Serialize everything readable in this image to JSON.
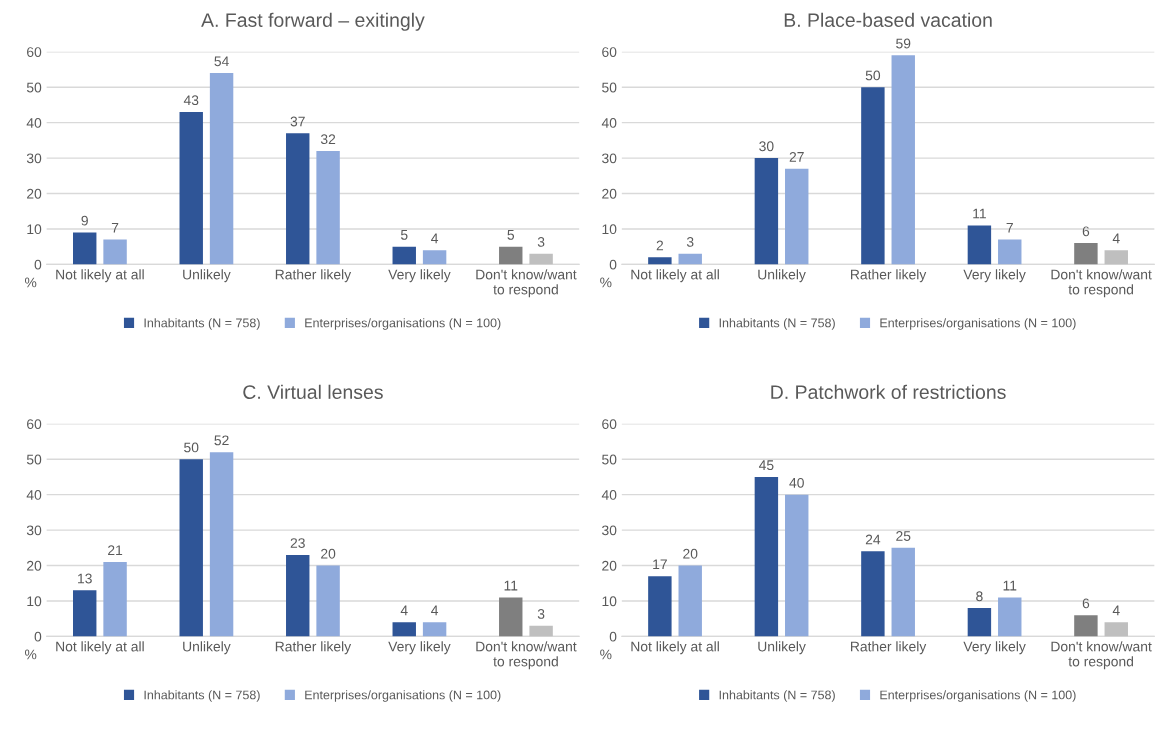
{
  "chart_data": [
    {
      "type": "bar",
      "title": "A. Fast forward – exitingly",
      "ylabel": "%",
      "categories": [
        "Not likely at all",
        "Unlikely",
        "Rather likely",
        "Very likely",
        "Don't know/want\nto respond"
      ],
      "ylim": [
        0,
        60
      ],
      "yticks": [
        0,
        10,
        20,
        30,
        40,
        50,
        60
      ],
      "grid": "y",
      "legend": "bottom",
      "data_labels": true,
      "series": [
        {
          "name": "Inhabitants (N = 758)",
          "color": "#2f5597",
          "colors": [
            "#2f5597",
            "#2f5597",
            "#2f5597",
            "#2f5597",
            "#7f7f7f"
          ],
          "values": [
            9,
            43,
            37,
            5,
            5
          ]
        },
        {
          "name": "Enterprises/organisations (N = 100)",
          "color": "#8faadc",
          "colors": [
            "#8faadc",
            "#8faadc",
            "#8faadc",
            "#8faadc",
            "#bfbfbf"
          ],
          "values": [
            7,
            54,
            32,
            4,
            3
          ]
        }
      ]
    },
    {
      "type": "bar",
      "title": "B. Place-based vacation",
      "ylabel": "%",
      "categories": [
        "Not likely at all",
        "Unlikely",
        "Rather likely",
        "Very likely",
        "Don't know/want\nto respond"
      ],
      "ylim": [
        0,
        60
      ],
      "yticks": [
        0,
        10,
        20,
        30,
        40,
        50,
        60
      ],
      "grid": "y",
      "legend": "bottom",
      "data_labels": true,
      "series": [
        {
          "name": "Inhabitants (N = 758)",
          "color": "#2f5597",
          "colors": [
            "#2f5597",
            "#2f5597",
            "#2f5597",
            "#2f5597",
            "#7f7f7f"
          ],
          "values": [
            2,
            30,
            50,
            11,
            6
          ]
        },
        {
          "name": "Enterprises/organisations (N = 100)",
          "color": "#8faadc",
          "colors": [
            "#8faadc",
            "#8faadc",
            "#8faadc",
            "#8faadc",
            "#bfbfbf"
          ],
          "values": [
            3,
            27,
            59,
            7,
            4
          ]
        }
      ]
    },
    {
      "type": "bar",
      "title": "C. Virtual lenses",
      "ylabel": "%",
      "categories": [
        "Not likely at all",
        "Unlikely",
        "Rather likely",
        "Very likely",
        "Don't know/want\nto respond"
      ],
      "ylim": [
        0,
        60
      ],
      "yticks": [
        0,
        10,
        20,
        30,
        40,
        50,
        60
      ],
      "grid": "y",
      "legend": "bottom",
      "data_labels": true,
      "series": [
        {
          "name": "Inhabitants (N = 758)",
          "color": "#2f5597",
          "colors": [
            "#2f5597",
            "#2f5597",
            "#2f5597",
            "#2f5597",
            "#7f7f7f"
          ],
          "values": [
            13,
            50,
            23,
            4,
            11
          ]
        },
        {
          "name": "Enterprises/organisations (N = 100)",
          "color": "#8faadc",
          "colors": [
            "#8faadc",
            "#8faadc",
            "#8faadc",
            "#8faadc",
            "#bfbfbf"
          ],
          "values": [
            21,
            52,
            20,
            4,
            3
          ]
        }
      ]
    },
    {
      "type": "bar",
      "title": "D. Patchwork of restrictions",
      "ylabel": "%",
      "categories": [
        "Not likely at all",
        "Unlikely",
        "Rather likely",
        "Very likely",
        "Don't know/want\nto respond"
      ],
      "ylim": [
        0,
        60
      ],
      "yticks": [
        0,
        10,
        20,
        30,
        40,
        50,
        60
      ],
      "grid": "y",
      "legend": "bottom",
      "data_labels": true,
      "series": [
        {
          "name": "Inhabitants (N = 758)",
          "color": "#2f5597",
          "colors": [
            "#2f5597",
            "#2f5597",
            "#2f5597",
            "#2f5597",
            "#7f7f7f"
          ],
          "values": [
            17,
            45,
            24,
            8,
            6
          ]
        },
        {
          "name": "Enterprises/organisations (N = 100)",
          "color": "#8faadc",
          "colors": [
            "#8faadc",
            "#8faadc",
            "#8faadc",
            "#8faadc",
            "#bfbfbf"
          ],
          "values": [
            20,
            40,
            25,
            11,
            4
          ]
        }
      ]
    }
  ]
}
